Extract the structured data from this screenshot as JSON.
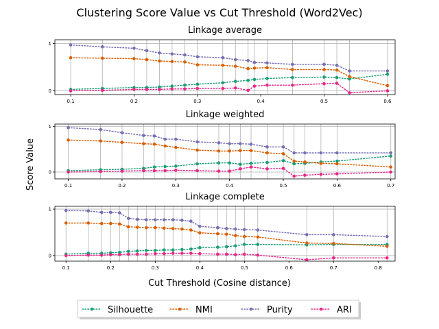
{
  "figure": {
    "title": "Clustering Score Value vs Cut Threshold (Word2Vec)",
    "ylabel": "Score Value",
    "xlabel": "Cut Threshold (Cosine distance)"
  },
  "legend": {
    "placement": "bottom-center",
    "entries": [
      {
        "name": "Silhouette",
        "color": "#1b9e77"
      },
      {
        "name": "NMI",
        "color": "#d95f02"
      },
      {
        "name": "Purity",
        "color": "#7570b3"
      },
      {
        "name": "ARI",
        "color": "#e7298a"
      }
    ]
  },
  "chart_data": [
    {
      "type": "line",
      "title": "Linkage average",
      "xlim": [
        0.075,
        0.612
      ],
      "ylim": [
        -0.08,
        1.08
      ],
      "xticks": [
        "0.1",
        "0.2",
        "0.3",
        "0.4",
        "0.5",
        "0.6"
      ],
      "xtick_values": [
        0.1,
        0.2,
        0.3,
        0.4,
        0.5,
        0.6
      ],
      "yticks": [
        "0",
        "1"
      ],
      "ytick_values": [
        0,
        1
      ],
      "grid": "x-vertical-lines-at-data-points",
      "x": [
        0.1,
        0.15,
        0.2,
        0.22,
        0.24,
        0.26,
        0.28,
        0.3,
        0.34,
        0.36,
        0.38,
        0.39,
        0.41,
        0.45,
        0.5,
        0.52,
        0.54,
        0.6
      ],
      "series": [
        {
          "name": "Silhouette",
          "color": "#1b9e77",
          "values": [
            0.03,
            0.05,
            0.07,
            0.07,
            0.08,
            0.1,
            0.12,
            0.14,
            0.17,
            0.2,
            0.22,
            0.24,
            0.26,
            0.28,
            0.29,
            0.28,
            0.25,
            0.35
          ]
        },
        {
          "name": "NMI",
          "color": "#d95f02",
          "values": [
            0.7,
            0.69,
            0.68,
            0.66,
            0.63,
            0.62,
            0.61,
            0.55,
            0.54,
            0.52,
            0.47,
            0.48,
            0.49,
            0.45,
            0.45,
            0.44,
            0.3,
            0.11
          ]
        },
        {
          "name": "Purity",
          "color": "#7570b3",
          "values": [
            0.97,
            0.93,
            0.9,
            0.85,
            0.8,
            0.78,
            0.76,
            0.72,
            0.7,
            0.66,
            0.64,
            0.6,
            0.59,
            0.56,
            0.56,
            0.54,
            0.42,
            0.42
          ]
        },
        {
          "name": "ARI",
          "color": "#e7298a",
          "values": [
            0.0,
            0.01,
            0.03,
            0.03,
            0.03,
            0.04,
            0.04,
            0.05,
            0.05,
            0.06,
            0.01,
            0.1,
            0.12,
            0.12,
            0.15,
            0.16,
            -0.04,
            0.0
          ]
        }
      ]
    },
    {
      "type": "line",
      "title": "Linkage weighted",
      "xlim": [
        0.075,
        0.708
      ],
      "ylim": [
        -0.15,
        1.05
      ],
      "xticks": [
        "0.1",
        "0.2",
        "0.3",
        "0.4",
        "0.5",
        "0.6",
        "0.7"
      ],
      "xtick_values": [
        0.1,
        0.2,
        0.3,
        0.4,
        0.5,
        0.6,
        0.7
      ],
      "yticks": [
        "0",
        "1"
      ],
      "ytick_values": [
        0,
        1
      ],
      "grid": "x-vertical-lines-at-data-points",
      "x": [
        0.1,
        0.16,
        0.2,
        0.24,
        0.26,
        0.28,
        0.3,
        0.34,
        0.38,
        0.4,
        0.42,
        0.44,
        0.47,
        0.5,
        0.52,
        0.54,
        0.57,
        0.6,
        0.7
      ],
      "series": [
        {
          "name": "Silhouette",
          "color": "#1b9e77",
          "values": [
            0.03,
            0.05,
            0.06,
            0.08,
            0.11,
            0.12,
            0.13,
            0.18,
            0.2,
            0.2,
            0.17,
            0.19,
            0.21,
            0.25,
            0.18,
            0.19,
            0.22,
            0.24,
            0.35
          ]
        },
        {
          "name": "NMI",
          "color": "#d95f02",
          "values": [
            0.7,
            0.68,
            0.65,
            0.62,
            0.61,
            0.57,
            0.54,
            0.48,
            0.46,
            0.46,
            0.47,
            0.47,
            0.42,
            0.4,
            0.24,
            0.22,
            0.19,
            0.18,
            0.11
          ]
        },
        {
          "name": "Purity",
          "color": "#7570b3",
          "values": [
            0.97,
            0.93,
            0.86,
            0.8,
            0.79,
            0.72,
            0.72,
            0.66,
            0.64,
            0.62,
            0.62,
            0.61,
            0.55,
            0.55,
            0.42,
            0.42,
            0.42,
            0.42,
            0.42
          ]
        },
        {
          "name": "ARI",
          "color": "#e7298a",
          "values": [
            0.0,
            0.01,
            0.02,
            0.03,
            0.03,
            0.03,
            0.04,
            0.03,
            0.02,
            0.02,
            0.07,
            0.11,
            0.07,
            0.08,
            -0.09,
            -0.07,
            -0.05,
            -0.04,
            0.0
          ]
        }
      ]
    },
    {
      "type": "line",
      "title": "Linkage complete",
      "xlim": [
        0.075,
        0.838
      ],
      "ylim": [
        -0.12,
        1.06
      ],
      "xticks": [
        "0.1",
        "0.2",
        "0.3",
        "0.4",
        "0.5",
        "0.6",
        "0.7",
        "0.8"
      ],
      "xtick_values": [
        0.1,
        0.2,
        0.3,
        0.4,
        0.5,
        0.6,
        0.7,
        0.8
      ],
      "yticks": [
        "0",
        "1"
      ],
      "ytick_values": [
        0,
        1
      ],
      "grid": "x-vertical-lines-at-data-points",
      "x": [
        0.1,
        0.15,
        0.18,
        0.2,
        0.22,
        0.24,
        0.26,
        0.28,
        0.3,
        0.32,
        0.34,
        0.36,
        0.38,
        0.4,
        0.44,
        0.46,
        0.48,
        0.5,
        0.53,
        0.64,
        0.7,
        0.82
      ],
      "series": [
        {
          "name": "Silhouette",
          "color": "#1b9e77",
          "values": [
            0.03,
            0.05,
            0.05,
            0.06,
            0.07,
            0.09,
            0.1,
            0.11,
            0.11,
            0.12,
            0.12,
            0.13,
            0.14,
            0.17,
            0.18,
            0.19,
            0.21,
            0.24,
            0.24,
            0.23,
            0.24,
            0.24
          ]
        },
        {
          "name": "NMI",
          "color": "#d95f02",
          "values": [
            0.7,
            0.7,
            0.69,
            0.69,
            0.68,
            0.62,
            0.61,
            0.6,
            0.6,
            0.59,
            0.58,
            0.57,
            0.55,
            0.49,
            0.47,
            0.46,
            0.43,
            0.41,
            0.4,
            0.27,
            0.26,
            0.2
          ]
        },
        {
          "name": "Purity",
          "color": "#7570b3",
          "values": [
            0.97,
            0.96,
            0.93,
            0.93,
            0.92,
            0.8,
            0.78,
            0.77,
            0.77,
            0.77,
            0.77,
            0.76,
            0.74,
            0.63,
            0.6,
            0.58,
            0.57,
            0.56,
            0.55,
            0.45,
            0.45,
            0.41
          ]
        },
        {
          "name": "ARI",
          "color": "#e7298a",
          "values": [
            0.0,
            0.01,
            0.01,
            0.02,
            0.02,
            0.03,
            0.03,
            0.03,
            0.04,
            0.04,
            0.05,
            0.05,
            0.05,
            0.04,
            0.03,
            0.03,
            0.02,
            0.03,
            0.01,
            -0.09,
            -0.05,
            -0.05
          ]
        }
      ]
    }
  ]
}
